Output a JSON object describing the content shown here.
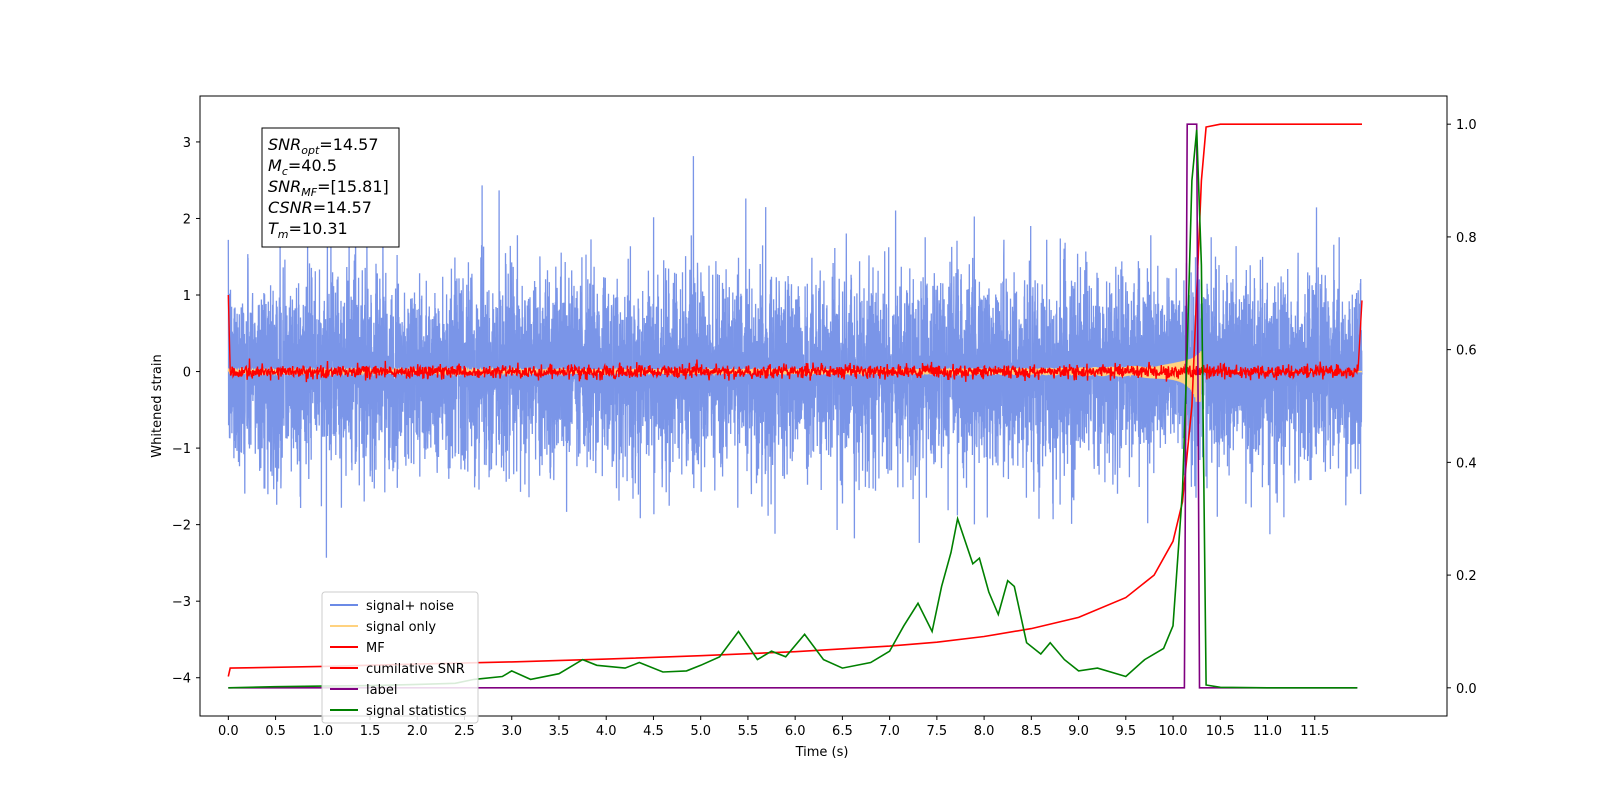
{
  "chart_data": {
    "type": "line",
    "xlabel": "Time (s)",
    "ylabel": "Whitened strain",
    "xlim": [
      -0.3,
      12.9
    ],
    "ylim": [
      -4.5,
      3.6
    ],
    "y2lim": [
      -0.05,
      1.05
    ],
    "xticks": [
      "0.0",
      "0.5",
      "1.0",
      "1.5",
      "2.0",
      "2.5",
      "3.0",
      "3.5",
      "4.0",
      "4.5",
      "5.0",
      "5.5",
      "6.0",
      "6.5",
      "7.0",
      "7.5",
      "8.0",
      "8.5",
      "9.0",
      "9.5",
      "10.0",
      "10.5",
      "11.0",
      "11.5"
    ],
    "yticks": [
      "3",
      "2",
      "1",
      "0",
      "−1",
      "−2",
      "−3",
      "−4"
    ],
    "y2ticks": [
      "1.0",
      "0.8",
      "0.6",
      "0.4",
      "0.2",
      "0.0"
    ],
    "legend_position": "lower-left",
    "legend": [
      {
        "label": "signal+ noise",
        "color": "#6b8ae6"
      },
      {
        "label": "signal only",
        "color": "#ffd27f"
      },
      {
        "label": "MF",
        "color": "#ff0000"
      },
      {
        "label": "cumilative SNR",
        "color": "#ff0000"
      },
      {
        "label": "label",
        "color": "#800080"
      },
      {
        "label": "signal statistics",
        "color": "#008000"
      }
    ],
    "annotations": [
      {
        "name": "SNR",
        "sub": "opt",
        "value": "=14.57"
      },
      {
        "name": "M",
        "sub": "c",
        "value": "=40.5"
      },
      {
        "name": "SNR",
        "sub": "MF",
        "value": "=[15.81]"
      },
      {
        "name": "CSNR",
        "sub": "",
        "value": "=14.57"
      },
      {
        "name": "T",
        "sub": "m",
        "value": "=10.31"
      }
    ],
    "series": [
      {
        "name": "signal+ noise",
        "axis": "left",
        "t_range": [
          0.0,
          12.0
        ],
        "description_range": [
          -2.5,
          3.1
        ]
      },
      {
        "name": "signal only",
        "axis": "left",
        "chirp_peak_time": 10.25,
        "peak_amplitude": 0.4
      },
      {
        "name": "MF",
        "axis": "left",
        "t_range": [
          0.0,
          12.0
        ],
        "level": 0.0,
        "start_value": 1.0,
        "end_value": 0.93
      },
      {
        "name": "cumilative SNR",
        "axis": "right",
        "x": [
          0.0,
          0.02,
          1.0,
          2.0,
          3.0,
          4.0,
          5.0,
          6.0,
          7.0,
          7.5,
          8.0,
          8.5,
          9.0,
          9.5,
          9.8,
          10.0,
          10.1,
          10.2,
          10.25,
          10.3,
          10.35,
          10.5,
          11.0,
          11.5,
          12.0
        ],
        "y": [
          0.02,
          0.035,
          0.038,
          0.042,
          0.046,
          0.051,
          0.057,
          0.064,
          0.074,
          0.081,
          0.091,
          0.105,
          0.125,
          0.16,
          0.2,
          0.26,
          0.33,
          0.5,
          0.7,
          0.9,
          0.995,
          1.0,
          1.0,
          1.0,
          1.0
        ]
      },
      {
        "name": "label",
        "axis": "right",
        "x": [
          0.0,
          10.12,
          10.15,
          10.25,
          10.28,
          11.95
        ],
        "y": [
          0.0,
          0.0,
          1.0,
          1.0,
          0.0,
          0.0
        ]
      },
      {
        "name": "signal statistics",
        "axis": "right",
        "x": [
          0.0,
          0.5,
          1.0,
          1.5,
          2.0,
          2.4,
          2.6,
          2.9,
          3.0,
          3.2,
          3.5,
          3.75,
          3.9,
          4.2,
          4.35,
          4.6,
          4.85,
          5.0,
          5.2,
          5.4,
          5.6,
          5.75,
          5.9,
          6.1,
          6.3,
          6.5,
          6.8,
          7.0,
          7.15,
          7.3,
          7.45,
          7.55,
          7.65,
          7.72,
          7.8,
          7.88,
          7.95,
          8.05,
          8.15,
          8.25,
          8.32,
          8.45,
          8.6,
          8.7,
          8.85,
          9.0,
          9.2,
          9.5,
          9.7,
          9.9,
          10.0,
          10.1,
          10.15,
          10.2,
          10.25,
          10.3,
          10.35,
          10.5,
          11.0,
          11.5,
          11.95
        ],
        "y": [
          0.0,
          0.002,
          0.003,
          0.004,
          0.006,
          0.008,
          0.015,
          0.02,
          0.03,
          0.015,
          0.025,
          0.05,
          0.04,
          0.035,
          0.045,
          0.028,
          0.03,
          0.04,
          0.055,
          0.1,
          0.05,
          0.065,
          0.055,
          0.095,
          0.05,
          0.035,
          0.045,
          0.065,
          0.11,
          0.15,
          0.1,
          0.18,
          0.24,
          0.3,
          0.26,
          0.22,
          0.23,
          0.17,
          0.13,
          0.19,
          0.18,
          0.08,
          0.06,
          0.08,
          0.05,
          0.03,
          0.035,
          0.02,
          0.05,
          0.07,
          0.11,
          0.35,
          0.6,
          0.9,
          0.99,
          0.75,
          0.005,
          0.001,
          0.0,
          0.0,
          0.0
        ]
      }
    ]
  }
}
